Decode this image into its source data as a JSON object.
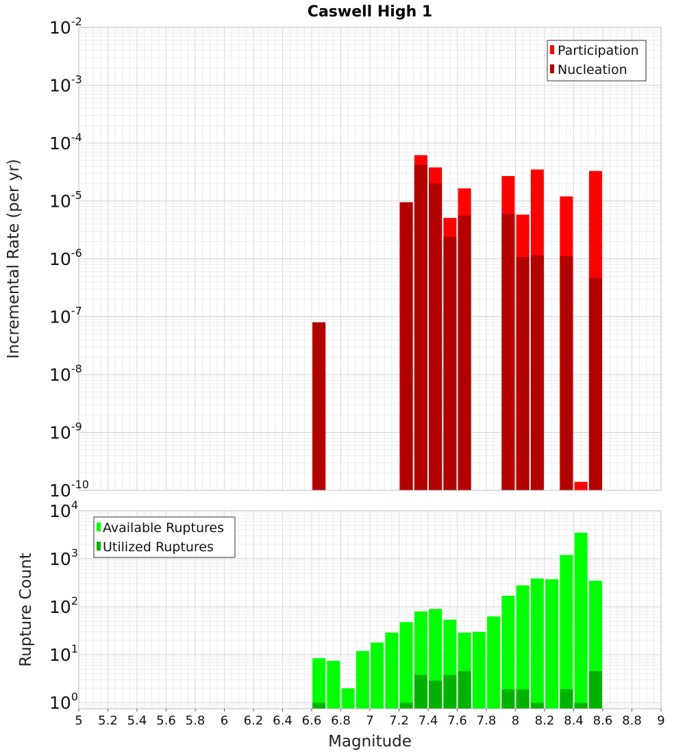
{
  "chart_data": [
    {
      "type": "bar",
      "title": "Caswell High 1",
      "xlabel": "",
      "ylabel": "Incremental Rate (per yr)",
      "y_scale": "log",
      "ylim": [
        1e-10,
        0.01
      ],
      "y_ticks": [
        {
          "base": "10",
          "exp": "-2"
        },
        {
          "base": "10",
          "exp": "-3"
        },
        {
          "base": "10",
          "exp": "-4"
        },
        {
          "base": "10",
          "exp": "-5"
        },
        {
          "base": "10",
          "exp": "-6"
        },
        {
          "base": "10",
          "exp": "-7"
        },
        {
          "base": "10",
          "exp": "-8"
        },
        {
          "base": "10",
          "exp": "-9"
        },
        {
          "base": "10",
          "exp": "-10"
        }
      ],
      "xlim": [
        5,
        9
      ],
      "grid": true,
      "legend_position": "top-right",
      "colors": {
        "participation": "#ff0000",
        "nucleation": "#b20000"
      },
      "series": [
        {
          "name": "Participation",
          "x": [
            6.65,
            7.25,
            7.35,
            7.45,
            7.55,
            7.65,
            7.95,
            8.05,
            8.15,
            8.35,
            8.45,
            8.55
          ],
          "values": [
            8e-08,
            9.5e-06,
            6.2e-05,
            3.8e-05,
            5.1e-06,
            1.65e-05,
            2.7e-05,
            5.8e-06,
            3.5e-05,
            1.2e-05,
            1.4e-10,
            3.3e-05
          ]
        },
        {
          "name": "Nucleation",
          "x": [
            6.65,
            7.25,
            7.35,
            7.45,
            7.55,
            7.65,
            7.95,
            8.05,
            8.15,
            8.35,
            8.45,
            8.55
          ],
          "values": [
            8e-08,
            9.5e-06,
            4.2e-05,
            2e-05,
            2.4e-06,
            5.6e-06,
            6e-06,
            1.08e-06,
            1.15e-06,
            1.12e-06,
            1e-10,
            4.7e-07
          ]
        }
      ]
    },
    {
      "type": "bar",
      "title": "",
      "xlabel": "Magnitude",
      "ylabel": "Rupture Count",
      "y_scale": "log",
      "ylim": [
        0.75,
        10000
      ],
      "y_ticks": [
        {
          "value": 10000,
          "base": "10",
          "exp": "4"
        },
        {
          "value": 1000,
          "base": "10",
          "exp": "3"
        },
        {
          "value": 100,
          "base": "10",
          "exp": "2"
        },
        {
          "value": 10,
          "base": "10",
          "exp": "1"
        },
        {
          "value": 1,
          "base": "10",
          "exp": "0"
        }
      ],
      "xlim": [
        5,
        9
      ],
      "x_ticks": [
        "5",
        "5.2",
        "5.4",
        "5.6",
        "5.8",
        "6",
        "6.2",
        "6.4",
        "6.6",
        "6.8",
        "7",
        "7.2",
        "7.4",
        "7.6",
        "7.8",
        "8",
        "8.2",
        "8.4",
        "8.6",
        "8.8",
        "9"
      ],
      "grid": true,
      "legend_position": "top-left",
      "colors": {
        "available": "#00ff00",
        "utilized": "#00b200"
      },
      "series": [
        {
          "name": "Available Ruptures",
          "x": [
            6.65,
            6.75,
            6.85,
            6.95,
            7.05,
            7.15,
            7.25,
            7.35,
            7.45,
            7.55,
            7.65,
            7.75,
            7.85,
            7.95,
            8.05,
            8.15,
            8.25,
            8.35,
            8.45,
            8.55
          ],
          "values": [
            8.5,
            7.5,
            2,
            12,
            18,
            29,
            48,
            80,
            90,
            54,
            29,
            30,
            63,
            170,
            280,
            390,
            375,
            1200,
            3500,
            350
          ]
        },
        {
          "name": "Utilized Ruptures",
          "x": [
            6.65,
            7.25,
            7.35,
            7.45,
            7.55,
            7.65,
            7.95,
            8.05,
            8.15,
            8.35,
            8.45,
            8.55
          ],
          "values": [
            1,
            1,
            3.8,
            2.9,
            3.8,
            4.6,
            1.9,
            1.9,
            1,
            1.9,
            1,
            4.6
          ]
        }
      ]
    }
  ]
}
